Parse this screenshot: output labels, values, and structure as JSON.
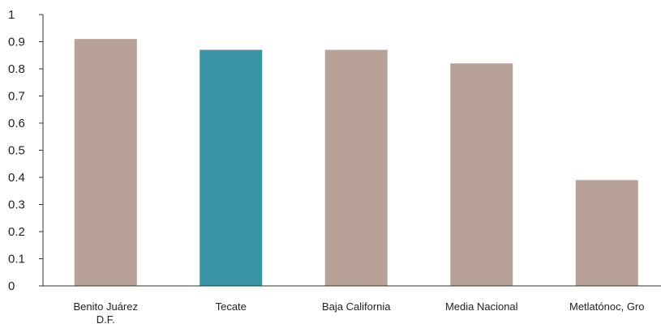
{
  "chart_data": {
    "type": "bar",
    "title": "",
    "xlabel": "",
    "ylabel": "",
    "ylim": [
      0,
      1
    ],
    "yticks": [
      "0",
      "0.1",
      "0.2",
      "0.3",
      "0.4",
      "0.5",
      "0.6",
      "0.7",
      "0.8",
      "0.9",
      "1"
    ],
    "categories": [
      "Benito Juárez D.F.",
      "Tecate",
      "Baja California",
      "Media Nacional",
      "Metlatónoc, Gro"
    ],
    "category_label_lines": [
      [
        "Benito Juárez",
        "D.F."
      ],
      [
        "Tecate"
      ],
      [
        "Baja California"
      ],
      [
        "Media Nacional"
      ],
      [
        "Metlatónoc, Gro"
      ]
    ],
    "values": [
      0.91,
      0.87,
      0.87,
      0.82,
      0.39
    ],
    "highlight_index": 1,
    "grid": false,
    "legend": "none"
  },
  "colors": {
    "bar": "#b8a197",
    "highlight": "#3a94a4",
    "axis": "#333333"
  }
}
